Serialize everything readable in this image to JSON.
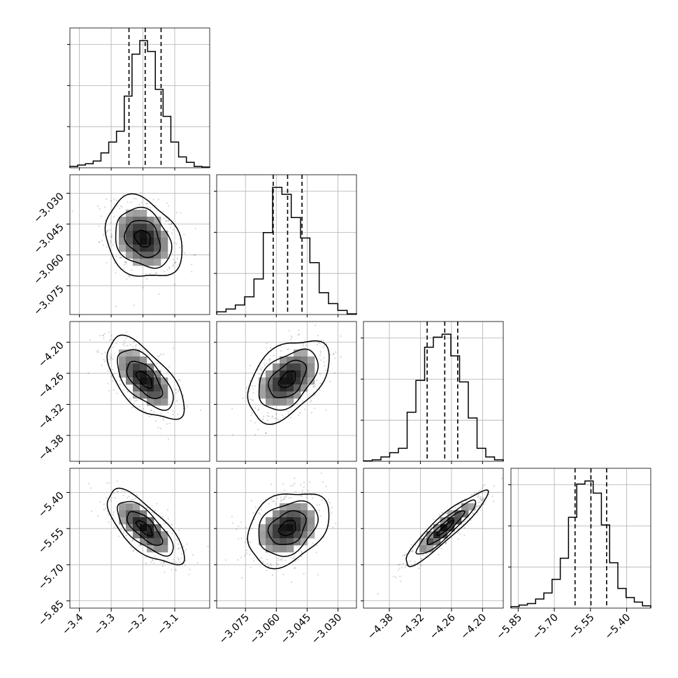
{
  "chart_data": {
    "type": "corner",
    "grid": true,
    "parameters": [
      {
        "range": [
          -3.43,
          -2.99
        ],
        "ticks": [
          {
            "value": -3.4,
            "label": "−3.4"
          },
          {
            "value": -3.3,
            "label": "−3.3"
          },
          {
            "value": -3.2,
            "label": "−3.2"
          },
          {
            "value": -3.1,
            "label": "−3.1"
          }
        ]
      },
      {
        "range": [
          -3.089,
          -3.021
        ],
        "ticks": [
          {
            "value": -3.075,
            "label": "−3.075"
          },
          {
            "value": -3.06,
            "label": "−3.060"
          },
          {
            "value": -3.045,
            "label": "−3.045"
          },
          {
            "value": -3.03,
            "label": "−3.030"
          }
        ]
      },
      {
        "range": [
          -4.43,
          -4.16
        ],
        "ticks": [
          {
            "value": -4.38,
            "label": "−4.38"
          },
          {
            "value": -4.32,
            "label": "−4.32"
          },
          {
            "value": -4.26,
            "label": "−4.26"
          },
          {
            "value": -4.2,
            "label": "−4.20"
          }
        ]
      },
      {
        "range": [
          -5.88,
          -5.3
        ],
        "ticks": [
          {
            "value": -5.85,
            "label": "−5.85"
          },
          {
            "value": -5.7,
            "label": "−5.70"
          },
          {
            "value": -5.55,
            "label": "−5.55"
          },
          {
            "value": -5.4,
            "label": "−5.40"
          }
        ]
      }
    ],
    "quantiles": [
      [
        -3.244,
        -3.193,
        -3.143
      ],
      [
        -3.0615,
        -3.0545,
        -3.0475
      ],
      [
        -4.307,
        -4.273,
        -4.248
      ],
      [
        -5.614,
        -5.548,
        -5.483
      ]
    ],
    "histograms": [
      [
        1,
        2,
        3,
        5,
        11,
        19,
        27,
        53,
        84,
        94,
        86,
        58,
        38,
        19,
        8,
        4,
        1,
        0.5
      ],
      [
        2,
        4,
        7,
        13,
        26,
        60,
        93,
        88,
        71,
        56,
        38,
        16,
        8,
        3,
        0.5
      ],
      [
        0.3,
        1,
        3,
        6,
        9,
        34,
        56,
        79,
        86,
        88,
        73,
        55,
        30,
        9,
        3,
        1
      ],
      [
        1,
        2,
        3,
        6,
        10,
        19,
        33,
        60,
        82,
        84,
        76,
        55,
        30,
        13,
        7,
        4,
        1.5
      ]
    ],
    "pairs": [
      {
        "row": 1,
        "col": 0,
        "center": [
          -3.2,
          -3.052
        ],
        "spread": [
          0.055,
          0.009
        ],
        "corr": -0.25
      },
      {
        "row": 2,
        "col": 0,
        "center": [
          -3.195,
          -4.272
        ],
        "spread": [
          0.055,
          0.036
        ],
        "corr": -0.62
      },
      {
        "row": 2,
        "col": 1,
        "center": [
          -3.0545,
          -4.272
        ],
        "spread": [
          0.009,
          0.036
        ],
        "corr": 0.45
      },
      {
        "row": 3,
        "col": 0,
        "center": [
          -3.195,
          -5.548
        ],
        "spread": [
          0.055,
          0.07
        ],
        "corr": -0.72
      },
      {
        "row": 3,
        "col": 1,
        "center": [
          -3.0545,
          -5.548
        ],
        "spread": [
          0.009,
          0.07
        ],
        "corr": 0.3
      },
      {
        "row": 3,
        "col": 2,
        "center": [
          -4.272,
          -5.548
        ],
        "spread": [
          0.036,
          0.07
        ],
        "corr": 0.92
      }
    ]
  }
}
